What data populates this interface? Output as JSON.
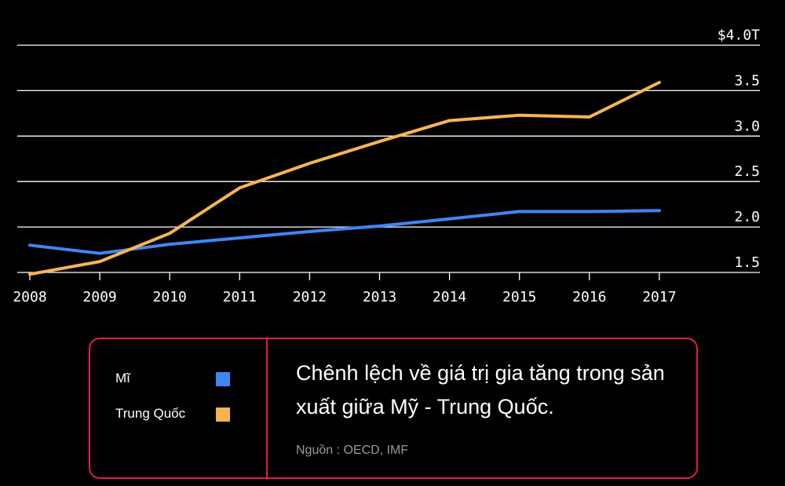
{
  "chart_data": {
    "type": "line",
    "x": [
      "2008",
      "2009",
      "2010",
      "2011",
      "2012",
      "2013",
      "2014",
      "2015",
      "2016",
      "2017"
    ],
    "y_ticks": [
      "$4.0T",
      "3.5",
      "3.0",
      "2.5",
      "2.0",
      "1.5"
    ],
    "y_tick_values": [
      4.0,
      3.5,
      3.0,
      2.5,
      2.0,
      1.5
    ],
    "ylim": [
      1.5,
      4.0
    ],
    "grid": true,
    "series": [
      {
        "name": "Mĩ",
        "color": "#3f86f5",
        "values": [
          1.8,
          1.71,
          1.81,
          1.88,
          1.95,
          2.01,
          2.09,
          2.17,
          2.17,
          2.18
        ]
      },
      {
        "name": "Trung Quốc",
        "color": "#f5b551",
        "values": [
          1.48,
          1.62,
          1.93,
          2.43,
          2.7,
          2.94,
          3.17,
          3.23,
          3.21,
          3.59
        ]
      }
    ]
  },
  "legend": {
    "items": [
      {
        "label": "Mĩ",
        "color": "#3f86f5"
      },
      {
        "label": "Trung Quốc",
        "color": "#f5b551"
      }
    ],
    "border_color": "#e8194b"
  },
  "caption": {
    "title": "Chênh lệch về giá trị gia tăng trong sản xuất giữa Mỹ - Trung Quốc.",
    "source": "Nguồn : OECD, IMF"
  }
}
